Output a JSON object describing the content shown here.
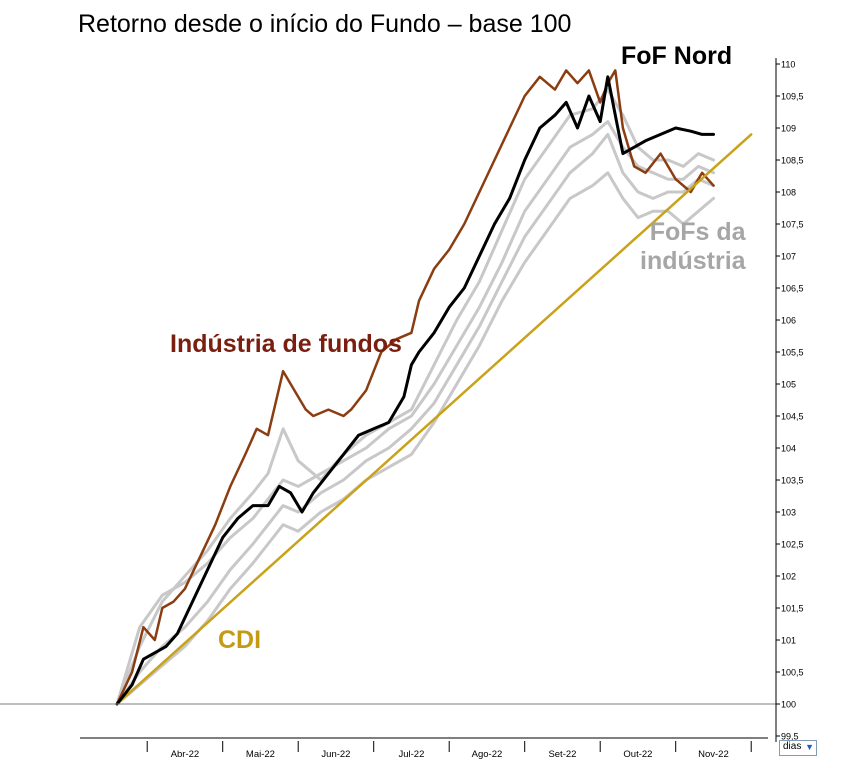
{
  "chart_data": {
    "type": "line",
    "title": "Retorno desde o início do Fundo – base 100",
    "x_tick_labels": [
      "Abr-22",
      "Mai-22",
      "Jun-22",
      "Jul-22",
      "Ago-22",
      "Set-22",
      "Out-22",
      "Nov-22"
    ],
    "x_unit_selector": "dias",
    "x_range_months": [
      0,
      8.4
    ],
    "y_tick_labels": [
      "99,5",
      "100",
      "100,5",
      "101",
      "101,5",
      "102",
      "102,5",
      "103",
      "103,5",
      "104",
      "104,5",
      "105",
      "105,5",
      "106",
      "106,5",
      "107",
      "107,5",
      "108",
      "108,5",
      "109",
      "109,5",
      "110"
    ],
    "ylim": [
      99.5,
      110
    ],
    "y_axis_side": "right",
    "grid": false,
    "annotations": {
      "fof_nord": "FoF Nord",
      "industria": "Indústria de fundos",
      "cdi": "CDI",
      "fofs_line1": "FoFs da",
      "fofs_line2": "indústria"
    },
    "colors": {
      "fof_nord": "#000000",
      "industria": "#8b3d12",
      "cdi": "#c9a21a",
      "fofs": "#c8c8c8"
    },
    "series": [
      {
        "id": "cdi",
        "x": [
          0,
          8.4
        ],
        "values": [
          100.0,
          108.9
        ]
      },
      {
        "id": "industria",
        "x": [
          0,
          0.2,
          0.35,
          0.5,
          0.6,
          0.75,
          0.9,
          1.1,
          1.3,
          1.5,
          1.7,
          1.85,
          2.0,
          2.2,
          2.35,
          2.5,
          2.6,
          2.8,
          3.0,
          3.1,
          3.3,
          3.5,
          3.7,
          3.9,
          4.0,
          4.2,
          4.4,
          4.6,
          4.8,
          5.0,
          5.2,
          5.4,
          5.6,
          5.8,
          5.95,
          6.1,
          6.25,
          6.4,
          6.5,
          6.6,
          6.7,
          6.85,
          7.0,
          7.2,
          7.4,
          7.6,
          7.75,
          7.9
        ],
        "values": [
          100.0,
          100.5,
          101.2,
          101.0,
          101.5,
          101.6,
          101.8,
          102.3,
          102.8,
          103.4,
          103.9,
          104.3,
          104.2,
          105.2,
          104.9,
          104.6,
          104.5,
          104.6,
          104.5,
          104.6,
          104.9,
          105.5,
          105.7,
          105.8,
          106.3,
          106.8,
          107.1,
          107.5,
          108.0,
          108.5,
          109.0,
          109.5,
          109.8,
          109.6,
          109.9,
          109.7,
          109.9,
          109.4,
          109.7,
          109.9,
          109.0,
          108.4,
          108.3,
          108.6,
          108.2,
          108.0,
          108.3,
          108.1
        ]
      },
      {
        "id": "fof_nord",
        "x": [
          0,
          0.2,
          0.35,
          0.5,
          0.65,
          0.8,
          1.0,
          1.2,
          1.4,
          1.6,
          1.8,
          2.0,
          2.15,
          2.3,
          2.45,
          2.6,
          2.8,
          3.0,
          3.2,
          3.4,
          3.6,
          3.8,
          3.9,
          4.0,
          4.2,
          4.4,
          4.6,
          4.8,
          5.0,
          5.2,
          5.4,
          5.6,
          5.8,
          5.95,
          6.1,
          6.25,
          6.4,
          6.5,
          6.6,
          6.7,
          6.85,
          7.0,
          7.2,
          7.4,
          7.6,
          7.75,
          7.9
        ],
        "values": [
          100.0,
          100.3,
          100.7,
          100.8,
          100.9,
          101.1,
          101.6,
          102.1,
          102.6,
          102.9,
          103.1,
          103.1,
          103.4,
          103.3,
          103.0,
          103.3,
          103.6,
          103.9,
          104.2,
          104.3,
          104.4,
          104.8,
          105.3,
          105.5,
          105.8,
          106.2,
          106.5,
          107.0,
          107.5,
          107.9,
          108.5,
          109.0,
          109.2,
          109.4,
          109.0,
          109.5,
          109.1,
          109.8,
          109.2,
          108.6,
          108.7,
          108.8,
          108.9,
          109.0,
          108.95,
          108.9,
          108.9
        ]
      },
      {
        "id": "fofs_1",
        "x": [
          0,
          0.3,
          0.6,
          0.9,
          1.2,
          1.5,
          1.8,
          2.0,
          2.2,
          2.4,
          2.7,
          3.0,
          3.3,
          3.6,
          3.9,
          4.2,
          4.5,
          4.8,
          5.1,
          5.4,
          5.7,
          6.0,
          6.3,
          6.5,
          6.7,
          6.9,
          7.1,
          7.3,
          7.5,
          7.7,
          7.9
        ],
        "values": [
          100.0,
          100.9,
          101.6,
          102.0,
          102.4,
          102.9,
          103.3,
          103.6,
          104.3,
          103.8,
          103.5,
          103.9,
          104.2,
          104.4,
          104.6,
          105.3,
          106.0,
          106.6,
          107.4,
          108.2,
          108.7,
          109.2,
          109.3,
          109.6,
          109.2,
          108.7,
          108.5,
          108.5,
          108.4,
          108.6,
          108.5
        ]
      },
      {
        "id": "fofs_2",
        "x": [
          0,
          0.3,
          0.6,
          0.9,
          1.2,
          1.5,
          1.8,
          2.0,
          2.2,
          2.4,
          2.7,
          3.0,
          3.3,
          3.6,
          3.9,
          4.2,
          4.5,
          4.8,
          5.1,
          5.4,
          5.7,
          6.0,
          6.3,
          6.5,
          6.7,
          6.9,
          7.1,
          7.3,
          7.5,
          7.7,
          7.9
        ],
        "values": [
          100.0,
          101.2,
          101.7,
          101.9,
          102.2,
          102.6,
          102.9,
          103.2,
          103.5,
          103.4,
          103.6,
          103.8,
          104.0,
          104.3,
          104.5,
          105.0,
          105.6,
          106.2,
          106.9,
          107.7,
          108.2,
          108.7,
          108.9,
          109.1,
          108.7,
          108.4,
          108.3,
          108.2,
          108.2,
          108.4,
          108.3
        ]
      },
      {
        "id": "fofs_3",
        "x": [
          0,
          0.3,
          0.6,
          0.9,
          1.2,
          1.5,
          1.8,
          2.0,
          2.2,
          2.4,
          2.7,
          3.0,
          3.3,
          3.6,
          3.9,
          4.2,
          4.5,
          4.8,
          5.1,
          5.4,
          5.7,
          6.0,
          6.3,
          6.5,
          6.7,
          6.9,
          7.1,
          7.3,
          7.5,
          7.7,
          7.9
        ],
        "values": [
          100.0,
          100.5,
          100.9,
          101.2,
          101.6,
          102.1,
          102.5,
          102.8,
          103.1,
          103.0,
          103.3,
          103.5,
          103.8,
          104.0,
          104.3,
          104.7,
          105.3,
          105.9,
          106.6,
          107.3,
          107.8,
          108.3,
          108.6,
          108.9,
          108.3,
          108.0,
          107.9,
          108.0,
          108.0,
          108.2,
          108.1
        ]
      },
      {
        "id": "fofs_4",
        "x": [
          0,
          0.3,
          0.6,
          0.9,
          1.2,
          1.5,
          1.8,
          2.0,
          2.2,
          2.4,
          2.7,
          3.0,
          3.3,
          3.6,
          3.9,
          4.2,
          4.5,
          4.8,
          5.1,
          5.4,
          5.7,
          6.0,
          6.3,
          6.5,
          6.7,
          6.9,
          7.1,
          7.3,
          7.5,
          7.7,
          7.9
        ],
        "values": [
          100.0,
          100.3,
          100.6,
          100.9,
          101.3,
          101.8,
          102.2,
          102.5,
          102.8,
          102.7,
          103.0,
          103.2,
          103.5,
          103.7,
          103.9,
          104.4,
          105.0,
          105.6,
          106.3,
          106.9,
          107.4,
          107.9,
          108.1,
          108.3,
          107.9,
          107.6,
          107.7,
          107.7,
          107.5,
          107.7,
          107.9
        ]
      }
    ]
  }
}
